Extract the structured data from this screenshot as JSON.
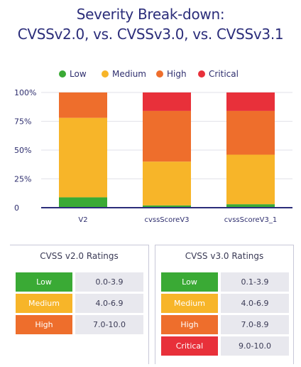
{
  "title_line1": "Severity Break-down:",
  "title_line2": "CVSSv2.0, vs. CVSSv3.0, vs. CVSSv3.1",
  "chart_data": {
    "type": "bar",
    "stacked": true,
    "categories": [
      "V2",
      "cvssScoreV3",
      "cvssScoreV3_1"
    ],
    "series": [
      {
        "name": "Low",
        "color": "#3aaa35",
        "values": [
          9,
          2,
          3
        ]
      },
      {
        "name": "Medium",
        "color": "#f7b529",
        "values": [
          69,
          38,
          43
        ]
      },
      {
        "name": "High",
        "color": "#ee6e2c",
        "values": [
          22,
          44,
          38
        ]
      },
      {
        "name": "Critical",
        "color": "#e8303a",
        "values": [
          0,
          16,
          16
        ]
      }
    ],
    "y_ticks": [
      "0",
      "25%",
      "50%",
      "75%",
      "100%"
    ],
    "ylim": [
      0,
      100
    ],
    "grid": true,
    "legend": "top"
  },
  "ratings": {
    "v2": {
      "title": "CVSS v2.0 Ratings",
      "rows": [
        {
          "severity": "Low",
          "range": "0.0-3.9",
          "color": "#3aaa35"
        },
        {
          "severity": "Medium",
          "range": "4.0-6.9",
          "color": "#f7b529"
        },
        {
          "severity": "High",
          "range": "7.0-10.0",
          "color": "#ee6e2c"
        }
      ]
    },
    "v3": {
      "title": "CVSS v3.0 Ratings",
      "rows": [
        {
          "severity": "Low",
          "range": "0.1-3.9",
          "color": "#3aaa35"
        },
        {
          "severity": "Medium",
          "range": "4.0-6.9",
          "color": "#f7b529"
        },
        {
          "severity": "High",
          "range": "7.0-8.9",
          "color": "#ee6e2c"
        },
        {
          "severity": "Critical",
          "range": "9.0-10.0",
          "color": "#e8303a"
        }
      ]
    }
  }
}
